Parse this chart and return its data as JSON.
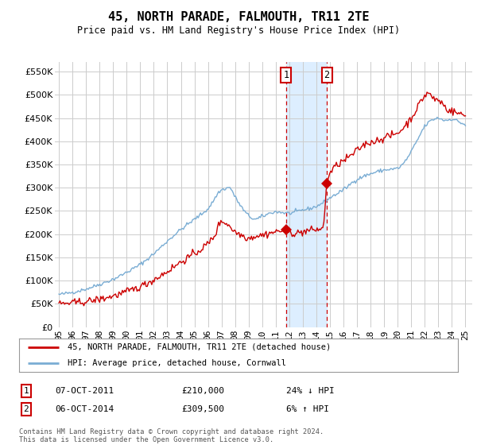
{
  "title": "45, NORTH PARADE, FALMOUTH, TR11 2TE",
  "subtitle": "Price paid vs. HM Land Registry's House Price Index (HPI)",
  "ylabel_ticks": [
    "£0",
    "£50K",
    "£100K",
    "£150K",
    "£200K",
    "£250K",
    "£300K",
    "£350K",
    "£400K",
    "£450K",
    "£500K",
    "£550K"
  ],
  "ytick_vals": [
    0,
    50000,
    100000,
    150000,
    200000,
    250000,
    300000,
    350000,
    400000,
    450000,
    500000,
    550000
  ],
  "ylim": [
    0,
    570000
  ],
  "transaction1_date": 2011.77,
  "transaction1_price": 210000,
  "transaction1_label": "1",
  "transaction2_date": 2014.77,
  "transaction2_price": 309500,
  "transaction2_label": "2",
  "legend_line1": "45, NORTH PARADE, FALMOUTH, TR11 2TE (detached house)",
  "legend_line2": "HPI: Average price, detached house, Cornwall",
  "table_row1": [
    "1",
    "07-OCT-2011",
    "£210,000",
    "24% ↓ HPI"
  ],
  "table_row2": [
    "2",
    "06-OCT-2014",
    "£309,500",
    "6% ↑ HPI"
  ],
  "footnote": "Contains HM Land Registry data © Crown copyright and database right 2024.\nThis data is licensed under the Open Government Licence v3.0.",
  "line_color_red": "#cc0000",
  "line_color_blue": "#7aadd4",
  "shade_color": "#ddeeff",
  "background_color": "#ffffff",
  "grid_color": "#cccccc"
}
